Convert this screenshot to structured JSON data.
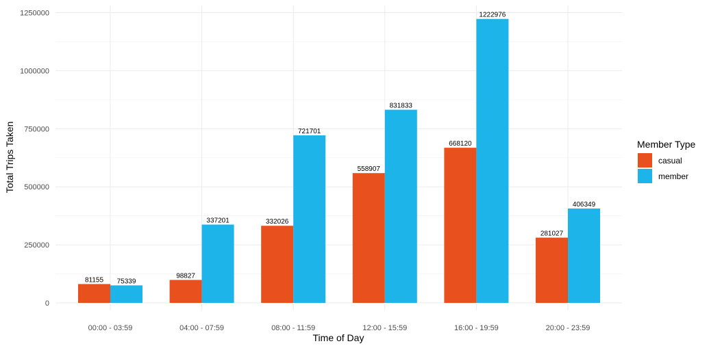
{
  "chart_data": {
    "type": "bar",
    "title": "",
    "xlabel": "Time of Day",
    "ylabel": "Total Trips Taken",
    "categories": [
      "00:00 - 03:59",
      "04:00 - 07:59",
      "08:00 - 11:59",
      "12:00 - 15:59",
      "16:00 - 19:59",
      "20:00 - 23:59"
    ],
    "series": [
      {
        "name": "casual",
        "color": "#E8501E",
        "values": [
          81155,
          98827,
          332026,
          558907,
          668120,
          281027
        ]
      },
      {
        "name": "member",
        "color": "#1DB5E9",
        "values": [
          75339,
          337201,
          721701,
          831833,
          1222976,
          406349
        ]
      }
    ],
    "y_ticks": [
      0,
      250000,
      500000,
      750000,
      1000000,
      1250000
    ],
    "y_tick_labels": [
      "0",
      "250000",
      "500000",
      "750000",
      "1000000",
      "1250000"
    ],
    "ylim": [
      0,
      1250000
    ],
    "grid": true,
    "legend": {
      "title": "Member Type",
      "position": "right"
    },
    "data_labels": true
  }
}
